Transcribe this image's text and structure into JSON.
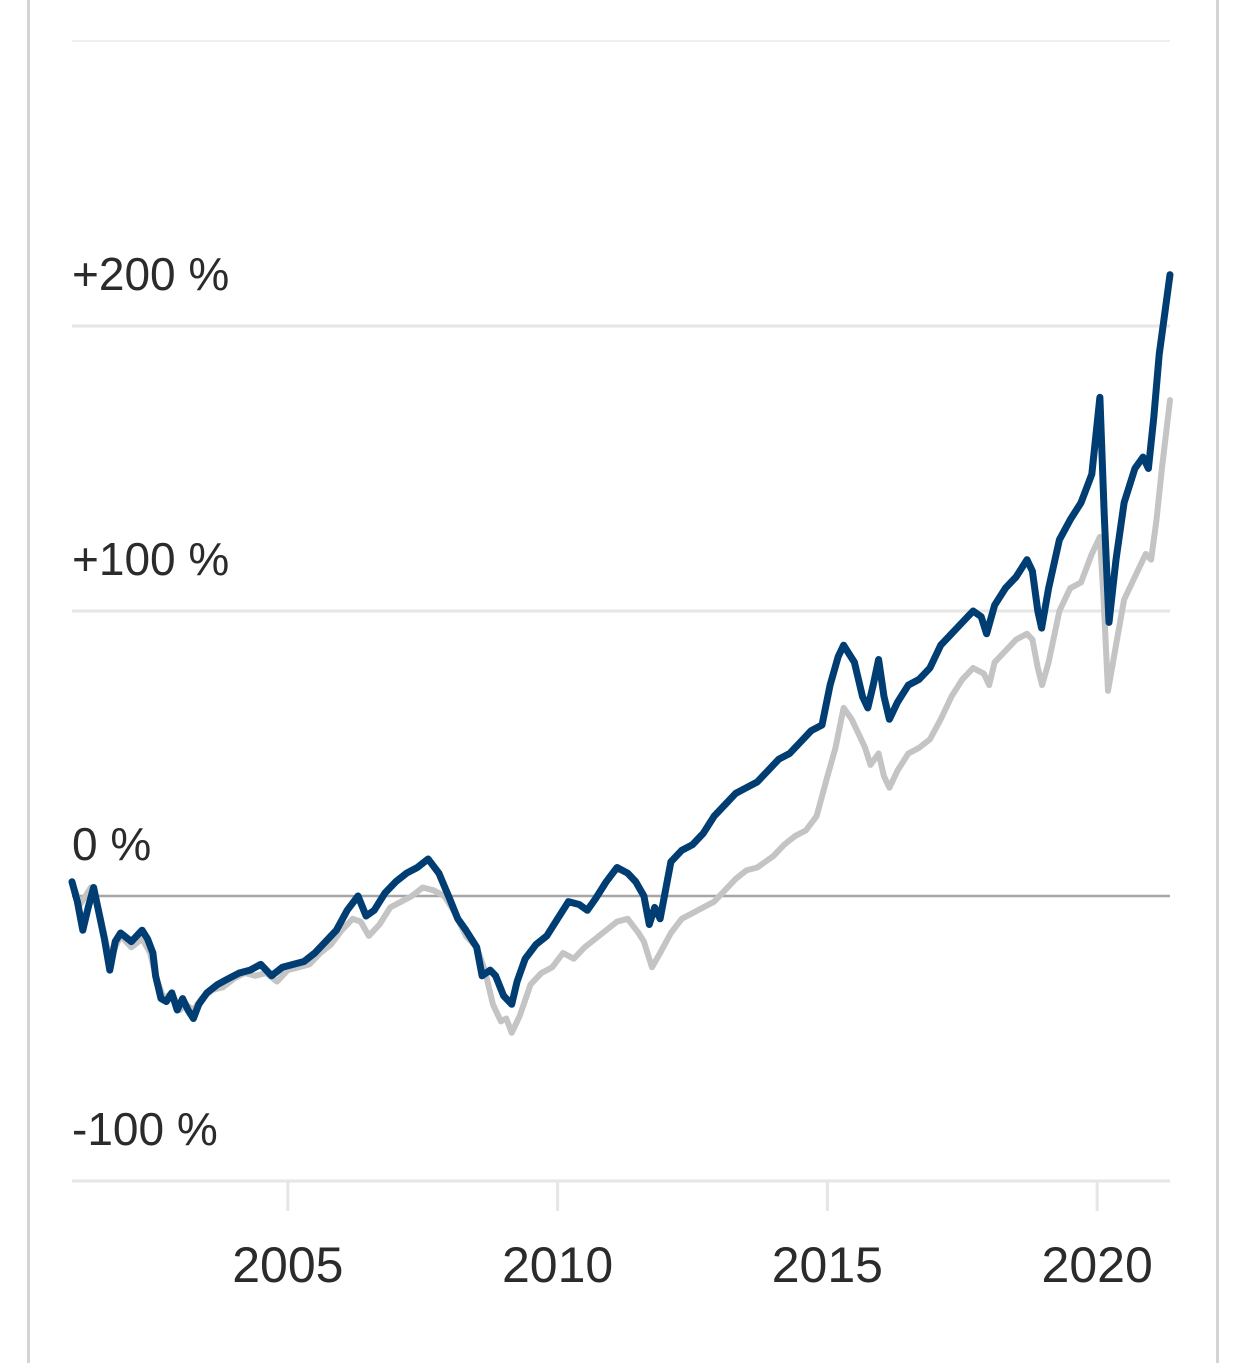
{
  "chart_data": {
    "type": "line",
    "title": "",
    "xlabel": "",
    "ylabel": "",
    "xlim": [
      2001.0,
      2021.35
    ],
    "ylim": [
      -100,
      300
    ],
    "y_ticks": [
      {
        "value": 200,
        "label": "+200 %"
      },
      {
        "value": 100,
        "label": "+100 %"
      },
      {
        "value": 0,
        "label": "0 %"
      },
      {
        "value": -100,
        "label": "-100 %"
      }
    ],
    "x_ticks": [
      {
        "value": 2005,
        "label": "2005"
      },
      {
        "value": 2010,
        "label": "2010"
      },
      {
        "value": 2015,
        "label": "2015"
      },
      {
        "value": 2020,
        "label": "2020"
      }
    ],
    "grid": true,
    "legend": "none",
    "series": [
      {
        "color": "#c4c4c4",
        "points": [
          [
            2001.0,
            5
          ],
          [
            2001.15,
            -3
          ],
          [
            2001.35,
            3
          ],
          [
            2001.5,
            -5
          ],
          [
            2001.65,
            -18
          ],
          [
            2001.75,
            -20
          ],
          [
            2001.9,
            -14
          ],
          [
            2002.1,
            -18
          ],
          [
            2002.3,
            -15
          ],
          [
            2002.45,
            -20
          ],
          [
            2002.55,
            -28
          ],
          [
            2002.7,
            -36
          ],
          [
            2002.85,
            -34
          ],
          [
            2003.0,
            -40
          ],
          [
            2003.1,
            -38
          ],
          [
            2003.25,
            -40
          ],
          [
            2003.4,
            -36
          ],
          [
            2003.6,
            -33
          ],
          [
            2003.8,
            -32
          ],
          [
            2004.0,
            -29
          ],
          [
            2004.2,
            -27
          ],
          [
            2004.4,
            -28
          ],
          [
            2004.6,
            -27
          ],
          [
            2004.8,
            -30
          ],
          [
            2005.0,
            -26
          ],
          [
            2005.2,
            -25
          ],
          [
            2005.4,
            -24
          ],
          [
            2005.6,
            -20
          ],
          [
            2005.8,
            -17
          ],
          [
            2006.0,
            -12
          ],
          [
            2006.2,
            -8
          ],
          [
            2006.35,
            -9
          ],
          [
            2006.5,
            -14
          ],
          [
            2006.7,
            -10
          ],
          [
            2006.9,
            -4
          ],
          [
            2007.1,
            -2
          ],
          [
            2007.3,
            0
          ],
          [
            2007.5,
            3
          ],
          [
            2007.7,
            2
          ],
          [
            2007.9,
            0
          ],
          [
            2008.1,
            -6
          ],
          [
            2008.3,
            -14
          ],
          [
            2008.5,
            -18
          ],
          [
            2008.65,
            -26
          ],
          [
            2008.8,
            -38
          ],
          [
            2008.95,
            -44
          ],
          [
            2009.05,
            -43
          ],
          [
            2009.15,
            -48
          ],
          [
            2009.3,
            -42
          ],
          [
            2009.5,
            -31
          ],
          [
            2009.7,
            -27
          ],
          [
            2009.9,
            -25
          ],
          [
            2010.1,
            -20
          ],
          [
            2010.3,
            -22
          ],
          [
            2010.5,
            -18
          ],
          [
            2010.7,
            -15
          ],
          [
            2010.9,
            -12
          ],
          [
            2011.1,
            -9
          ],
          [
            2011.3,
            -8
          ],
          [
            2011.5,
            -13
          ],
          [
            2011.6,
            -16
          ],
          [
            2011.75,
            -25
          ],
          [
            2011.9,
            -20
          ],
          [
            2012.1,
            -13
          ],
          [
            2012.3,
            -8
          ],
          [
            2012.5,
            -6
          ],
          [
            2012.7,
            -4
          ],
          [
            2012.9,
            -2
          ],
          [
            2013.1,
            2
          ],
          [
            2013.3,
            6
          ],
          [
            2013.5,
            9
          ],
          [
            2013.7,
            10
          ],
          [
            2014.0,
            14
          ],
          [
            2014.2,
            18
          ],
          [
            2014.4,
            21
          ],
          [
            2014.6,
            23
          ],
          [
            2014.8,
            28
          ],
          [
            2015.0,
            42
          ],
          [
            2015.15,
            52
          ],
          [
            2015.3,
            66
          ],
          [
            2015.45,
            62
          ],
          [
            2015.6,
            56
          ],
          [
            2015.7,
            52
          ],
          [
            2015.8,
            46
          ],
          [
            2015.95,
            50
          ],
          [
            2016.05,
            42
          ],
          [
            2016.15,
            38
          ],
          [
            2016.3,
            44
          ],
          [
            2016.5,
            50
          ],
          [
            2016.7,
            52
          ],
          [
            2016.9,
            55
          ],
          [
            2017.1,
            62
          ],
          [
            2017.3,
            70
          ],
          [
            2017.5,
            76
          ],
          [
            2017.7,
            80
          ],
          [
            2017.9,
            78
          ],
          [
            2018.0,
            74
          ],
          [
            2018.1,
            82
          ],
          [
            2018.3,
            86
          ],
          [
            2018.5,
            90
          ],
          [
            2018.7,
            92
          ],
          [
            2018.8,
            90
          ],
          [
            2018.9,
            80
          ],
          [
            2018.98,
            74
          ],
          [
            2019.1,
            82
          ],
          [
            2019.3,
            100
          ],
          [
            2019.5,
            108
          ],
          [
            2019.7,
            110
          ],
          [
            2019.9,
            120
          ],
          [
            2020.05,
            126
          ],
          [
            2020.12,
            104
          ],
          [
            2020.2,
            72
          ],
          [
            2020.35,
            88
          ],
          [
            2020.5,
            104
          ],
          [
            2020.7,
            112
          ],
          [
            2020.9,
            120
          ],
          [
            2021.0,
            118
          ],
          [
            2021.1,
            132
          ],
          [
            2021.2,
            150
          ],
          [
            2021.3,
            166
          ],
          [
            2021.35,
            174
          ]
        ]
      },
      {
        "color": "#003d73",
        "points": [
          [
            2001.0,
            5
          ],
          [
            2001.1,
            -2
          ],
          [
            2001.2,
            -12
          ],
          [
            2001.3,
            -4
          ],
          [
            2001.4,
            3
          ],
          [
            2001.5,
            -6
          ],
          [
            2001.6,
            -15
          ],
          [
            2001.7,
            -26
          ],
          [
            2001.8,
            -16
          ],
          [
            2001.9,
            -13
          ],
          [
            2002.1,
            -16
          ],
          [
            2002.2,
            -14
          ],
          [
            2002.3,
            -12
          ],
          [
            2002.4,
            -15
          ],
          [
            2002.5,
            -20
          ],
          [
            2002.55,
            -28
          ],
          [
            2002.65,
            -36
          ],
          [
            2002.75,
            -37
          ],
          [
            2002.85,
            -34
          ],
          [
            2002.95,
            -40
          ],
          [
            2003.05,
            -36
          ],
          [
            2003.15,
            -40
          ],
          [
            2003.25,
            -43
          ],
          [
            2003.35,
            -38
          ],
          [
            2003.5,
            -34
          ],
          [
            2003.7,
            -31
          ],
          [
            2003.9,
            -29
          ],
          [
            2004.1,
            -27
          ],
          [
            2004.3,
            -26
          ],
          [
            2004.5,
            -24
          ],
          [
            2004.7,
            -28
          ],
          [
            2004.9,
            -25
          ],
          [
            2005.1,
            -24
          ],
          [
            2005.3,
            -23
          ],
          [
            2005.5,
            -20
          ],
          [
            2005.7,
            -16
          ],
          [
            2005.9,
            -12
          ],
          [
            2006.1,
            -5
          ],
          [
            2006.3,
            0
          ],
          [
            2006.45,
            -7
          ],
          [
            2006.6,
            -5
          ],
          [
            2006.8,
            1
          ],
          [
            2007.0,
            5
          ],
          [
            2007.2,
            8
          ],
          [
            2007.4,
            10
          ],
          [
            2007.6,
            13
          ],
          [
            2007.8,
            8
          ],
          [
            2008.0,
            -1
          ],
          [
            2008.15,
            -8
          ],
          [
            2008.3,
            -12
          ],
          [
            2008.5,
            -18
          ],
          [
            2008.6,
            -28
          ],
          [
            2008.75,
            -26
          ],
          [
            2008.85,
            -28
          ],
          [
            2009.0,
            -35
          ],
          [
            2009.15,
            -38
          ],
          [
            2009.25,
            -30
          ],
          [
            2009.4,
            -22
          ],
          [
            2009.6,
            -17
          ],
          [
            2009.8,
            -14
          ],
          [
            2010.0,
            -8
          ],
          [
            2010.2,
            -2
          ],
          [
            2010.4,
            -3
          ],
          [
            2010.55,
            -5
          ],
          [
            2010.7,
            -1
          ],
          [
            2010.9,
            5
          ],
          [
            2011.1,
            10
          ],
          [
            2011.3,
            8
          ],
          [
            2011.45,
            5
          ],
          [
            2011.6,
            0
          ],
          [
            2011.7,
            -10
          ],
          [
            2011.8,
            -4
          ],
          [
            2011.9,
            -8
          ],
          [
            2012.1,
            12
          ],
          [
            2012.3,
            16
          ],
          [
            2012.5,
            18
          ],
          [
            2012.7,
            22
          ],
          [
            2012.9,
            28
          ],
          [
            2013.1,
            32
          ],
          [
            2013.3,
            36
          ],
          [
            2013.5,
            38
          ],
          [
            2013.7,
            40
          ],
          [
            2013.9,
            44
          ],
          [
            2014.1,
            48
          ],
          [
            2014.3,
            50
          ],
          [
            2014.5,
            54
          ],
          [
            2014.7,
            58
          ],
          [
            2014.9,
            60
          ],
          [
            2015.05,
            74
          ],
          [
            2015.2,
            84
          ],
          [
            2015.3,
            88
          ],
          [
            2015.5,
            82
          ],
          [
            2015.65,
            70
          ],
          [
            2015.75,
            66
          ],
          [
            2015.85,
            74
          ],
          [
            2015.95,
            83
          ],
          [
            2016.05,
            70
          ],
          [
            2016.15,
            62
          ],
          [
            2016.3,
            68
          ],
          [
            2016.5,
            74
          ],
          [
            2016.7,
            76
          ],
          [
            2016.9,
            80
          ],
          [
            2017.1,
            88
          ],
          [
            2017.3,
            92
          ],
          [
            2017.5,
            96
          ],
          [
            2017.7,
            100
          ],
          [
            2017.85,
            98
          ],
          [
            2017.95,
            92
          ],
          [
            2018.1,
            102
          ],
          [
            2018.3,
            108
          ],
          [
            2018.5,
            112
          ],
          [
            2018.7,
            118
          ],
          [
            2018.8,
            114
          ],
          [
            2018.9,
            100
          ],
          [
            2018.97,
            94
          ],
          [
            2019.1,
            108
          ],
          [
            2019.3,
            125
          ],
          [
            2019.5,
            132
          ],
          [
            2019.7,
            138
          ],
          [
            2019.9,
            148
          ],
          [
            2020.05,
            175
          ],
          [
            2020.13,
            134
          ],
          [
            2020.22,
            96
          ],
          [
            2020.35,
            118
          ],
          [
            2020.5,
            138
          ],
          [
            2020.7,
            150
          ],
          [
            2020.85,
            154
          ],
          [
            2020.95,
            150
          ],
          [
            2021.05,
            168
          ],
          [
            2021.15,
            190
          ],
          [
            2021.25,
            204
          ],
          [
            2021.35,
            218
          ]
        ]
      }
    ]
  }
}
